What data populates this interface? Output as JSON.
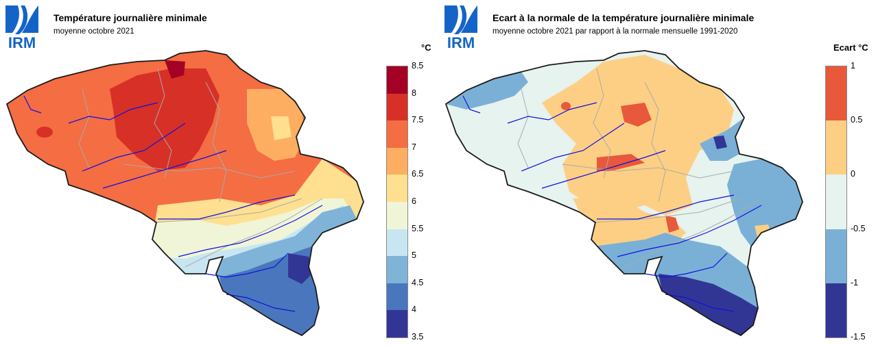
{
  "logo_text": "IRM",
  "left": {
    "title": "Température journalière minimale",
    "subtitle": "moyenne octobre 2021",
    "unit": "°C",
    "legend": {
      "ticks": [
        "8.5",
        "8",
        "7.5",
        "7",
        "6.5",
        "6",
        "5.5",
        "5",
        "4.5",
        "4",
        "3.5"
      ],
      "colors": [
        "#a50026",
        "#d73027",
        "#f46d43",
        "#fdae61",
        "#fee090",
        "#f0f5d8",
        "#c8e6f2",
        "#7fb3d8",
        "#4a76bd",
        "#313695"
      ]
    }
  },
  "right": {
    "title": "Ecart à la normale de la température journalière minimale",
    "subtitle": "moyenne octobre 2021 par rapport à la normale mensuelle 1991-2020",
    "unit": "Ecart  °C",
    "legend": {
      "ticks": [
        "1",
        "0.5",
        "0",
        "-0.5",
        "-1",
        "-1.5"
      ],
      "colors": [
        "#e8593c",
        "#fdcf84",
        "#e6f3ee",
        "#7ab0d6",
        "#313695"
      ]
    }
  }
}
